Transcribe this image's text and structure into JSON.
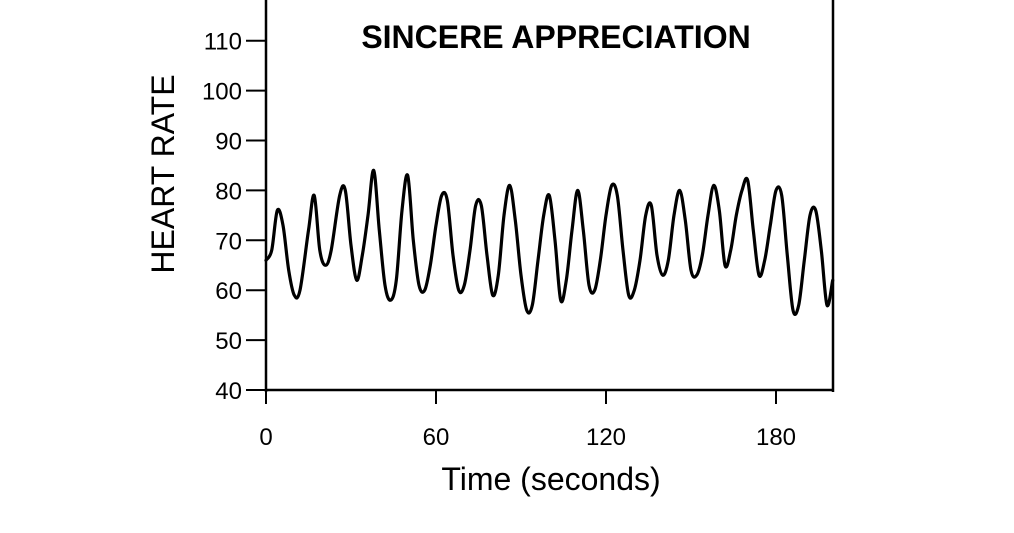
{
  "chart_data": {
    "type": "line",
    "title": "SINCERE APPRECIATION",
    "xlabel": "Time (seconds)",
    "ylabel": "HEART RATE",
    "xlim": [
      0,
      200
    ],
    "ylim": [
      40,
      120
    ],
    "x_ticks": [
      0,
      60,
      120,
      180
    ],
    "y_ticks": [
      40,
      50,
      60,
      70,
      80,
      90,
      100,
      110
    ],
    "x_tick_labels": [
      "0",
      "60",
      "120",
      "180"
    ],
    "y_tick_labels": [
      "40",
      "50",
      "60",
      "70",
      "80",
      "90",
      "100",
      "110"
    ],
    "grid": false,
    "line_color": "#000000",
    "series": [
      {
        "x": [
          0,
          2,
          4,
          6,
          8,
          10,
          12,
          15,
          17,
          19,
          21,
          23,
          26,
          28,
          30,
          32,
          34,
          36,
          38,
          40,
          42,
          44,
          46,
          48,
          50,
          52,
          54,
          56,
          58,
          60,
          62,
          64,
          66,
          68,
          70,
          72,
          74,
          76,
          78,
          80,
          82,
          84,
          86,
          88,
          90,
          92,
          94,
          96,
          98,
          100,
          102,
          104,
          106,
          108,
          110,
          112,
          114,
          116,
          118,
          120,
          122,
          124,
          126,
          128,
          130,
          132,
          134,
          136,
          138,
          140,
          142,
          144,
          146,
          148,
          150,
          152,
          154,
          156,
          158,
          160,
          162,
          164,
          166,
          168,
          170,
          172,
          174,
          176,
          178,
          180,
          182,
          184,
          186,
          188,
          190,
          192,
          194,
          196,
          198,
          200
        ],
        "y": [
          66,
          68,
          76,
          73,
          64,
          59,
          60,
          72,
          79,
          68,
          65,
          68,
          79,
          80,
          69,
          62,
          67,
          75,
          84,
          72,
          61,
          58,
          62,
          76,
          83,
          70,
          61,
          60,
          65,
          73,
          79,
          78,
          67,
          60,
          61,
          68,
          77,
          77,
          67,
          59,
          63,
          75,
          81,
          74,
          63,
          56,
          57,
          66,
          75,
          79,
          70,
          58,
          62,
          72,
          80,
          72,
          61,
          60,
          66,
          75,
          81,
          79,
          68,
          59,
          60,
          66,
          75,
          77,
          67,
          63,
          66,
          75,
          80,
          74,
          64,
          63,
          67,
          75,
          81,
          76,
          65,
          68,
          75,
          80,
          82,
          72,
          63,
          66,
          73,
          80,
          79,
          67,
          56,
          57,
          66,
          75,
          76,
          68,
          57,
          62
        ]
      }
    ]
  }
}
